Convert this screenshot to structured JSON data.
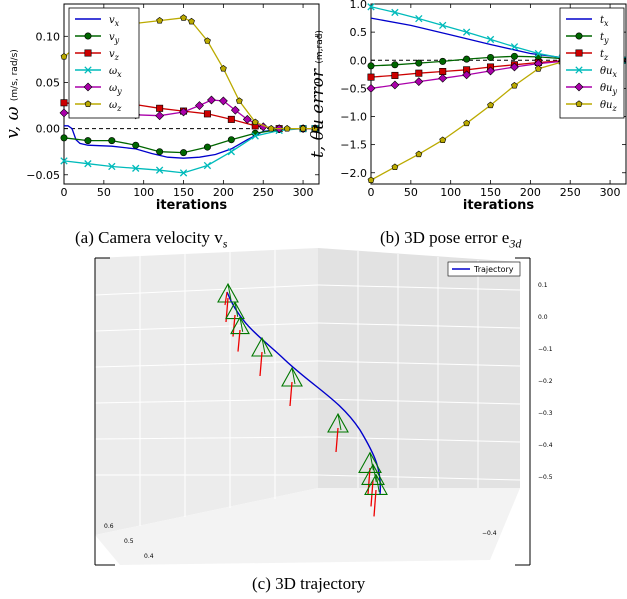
{
  "captions": {
    "a": "(a) Camera velocity v",
    "a_sub": "s",
    "b": "(b) 3D pose error e",
    "b_sub": "3d",
    "c": "(c) 3D trajectory"
  },
  "chart_data": [
    {
      "type": "line",
      "id": "velocity",
      "xlabel": "iterations",
      "ylabel": "v, ω",
      "ylabel_units": "(m/s, rad/s)",
      "xlim": [
        0,
        320
      ],
      "ylim": [
        -0.06,
        0.135
      ],
      "xticks": [
        0,
        50,
        100,
        150,
        200,
        250,
        300
      ],
      "yticks": [
        -0.05,
        0.0,
        0.05,
        0.1
      ],
      "ytick_labels": [
        "−0.05",
        "0.00",
        "0.05",
        "0.10"
      ],
      "legend_position": "top-left",
      "series": [
        {
          "name": "v_x",
          "color": "#0000cc",
          "marker": "none",
          "x": [
            0,
            5,
            10,
            15,
            20,
            30,
            60,
            90,
            110,
            130,
            150,
            170,
            190,
            210,
            230,
            250,
            270,
            290,
            310
          ],
          "y": [
            0.003,
            0.003,
            0.0,
            -0.012,
            -0.016,
            -0.018,
            -0.019,
            -0.022,
            -0.027,
            -0.031,
            -0.032,
            -0.031,
            -0.028,
            -0.022,
            -0.012,
            -0.003,
            -0.001,
            0.0,
            0.0
          ]
        },
        {
          "name": "v_y",
          "color": "#006600",
          "marker": "circle",
          "x": [
            0,
            30,
            60,
            90,
            120,
            150,
            180,
            210,
            240,
            270,
            300,
            315
          ],
          "y": [
            -0.01,
            -0.013,
            -0.013,
            -0.018,
            -0.025,
            -0.026,
            -0.02,
            -0.012,
            -0.005,
            -0.001,
            0.0,
            0.0
          ]
        },
        {
          "name": "v_z",
          "color": "#cc0000",
          "marker": "square",
          "x": [
            0,
            30,
            60,
            90,
            120,
            150,
            180,
            210,
            240,
            270,
            300,
            315
          ],
          "y": [
            0.028,
            0.026,
            0.028,
            0.026,
            0.022,
            0.019,
            0.016,
            0.01,
            0.003,
            0.0,
            0.0,
            0.0
          ]
        },
        {
          "name": "ω_x",
          "color": "#00bbbb",
          "marker": "x",
          "x": [
            0,
            30,
            60,
            90,
            120,
            150,
            180,
            210,
            240,
            270,
            300,
            315
          ],
          "y": [
            -0.035,
            -0.038,
            -0.041,
            -0.043,
            -0.045,
            -0.048,
            -0.04,
            -0.025,
            -0.008,
            -0.002,
            0.0,
            0.0
          ]
        },
        {
          "name": "ω_y",
          "color": "#aa00aa",
          "marker": "diamond",
          "x": [
            0,
            30,
            60,
            90,
            120,
            150,
            170,
            185,
            200,
            215,
            230,
            250,
            270,
            300,
            315
          ],
          "y": [
            0.017,
            0.016,
            0.016,
            0.015,
            0.014,
            0.018,
            0.025,
            0.031,
            0.03,
            0.02,
            0.01,
            0.002,
            0.0,
            0.0,
            0.0
          ]
        },
        {
          "name": "ω_z",
          "color": "#bbaa00",
          "marker": "pentagon",
          "x": [
            0,
            30,
            60,
            90,
            120,
            150,
            160,
            180,
            200,
            220,
            240,
            260,
            280,
            300,
            315
          ],
          "y": [
            0.078,
            0.098,
            0.11,
            0.114,
            0.117,
            0.12,
            0.116,
            0.095,
            0.065,
            0.03,
            0.007,
            0.0,
            0.0,
            0.0,
            0.0
          ]
        }
      ]
    },
    {
      "type": "line",
      "id": "pose_error",
      "xlabel": "iterations",
      "ylabel": "t, θu error",
      "ylabel_units": "(m,rad)",
      "xlim": [
        0,
        320
      ],
      "ylim": [
        -2.2,
        1.0
      ],
      "xticks": [
        0,
        50,
        100,
        150,
        200,
        250,
        300
      ],
      "yticks": [
        -2.0,
        -1.5,
        -1.0,
        -0.5,
        0.0,
        0.5,
        1.0
      ],
      "ytick_labels": [
        "−2.0",
        "−1.5",
        "−1.0",
        "−0.5",
        "0.0",
        "0.5",
        "1.0"
      ],
      "legend_position": "top-right",
      "series": [
        {
          "name": "t_x",
          "color": "#0000cc",
          "marker": "none",
          "x": [
            0,
            50,
            100,
            150,
            200,
            250,
            300,
            315
          ],
          "y": [
            0.75,
            0.62,
            0.45,
            0.28,
            0.12,
            0.03,
            0.0,
            0.0
          ]
        },
        {
          "name": "t_y",
          "color": "#006600",
          "marker": "circle",
          "x": [
            0,
            30,
            60,
            90,
            120,
            150,
            180,
            210,
            240,
            270,
            300,
            315
          ],
          "y": [
            -0.1,
            -0.08,
            -0.05,
            -0.02,
            0.02,
            0.05,
            0.07,
            0.06,
            0.03,
            0.01,
            0.0,
            0.0
          ]
        },
        {
          "name": "t_z",
          "color": "#cc0000",
          "marker": "square",
          "x": [
            0,
            30,
            60,
            90,
            120,
            150,
            180,
            210,
            240,
            270,
            300,
            315
          ],
          "y": [
            -0.3,
            -0.27,
            -0.23,
            -0.2,
            -0.17,
            -0.12,
            -0.08,
            -0.04,
            -0.01,
            0.0,
            0.0,
            0.0
          ]
        },
        {
          "name": "θu_x",
          "color": "#00bbbb",
          "marker": "x",
          "x": [
            0,
            30,
            60,
            90,
            120,
            150,
            180,
            210,
            240,
            270,
            300,
            315
          ],
          "y": [
            0.95,
            0.85,
            0.74,
            0.62,
            0.5,
            0.37,
            0.24,
            0.12,
            0.04,
            0.01,
            0.0,
            0.0
          ]
        },
        {
          "name": "θu_y",
          "color": "#aa00aa",
          "marker": "diamond",
          "x": [
            0,
            30,
            60,
            90,
            120,
            150,
            180,
            210,
            240,
            270,
            300,
            315
          ],
          "y": [
            -0.5,
            -0.44,
            -0.38,
            -0.32,
            -0.26,
            -0.19,
            -0.12,
            -0.06,
            -0.02,
            0.0,
            0.0,
            0.0
          ]
        },
        {
          "name": "θu_z",
          "color": "#bbaa00",
          "marker": "pentagon",
          "x": [
            0,
            30,
            60,
            90,
            120,
            150,
            180,
            210,
            240,
            270,
            300,
            315
          ],
          "y": [
            -2.13,
            -1.9,
            -1.67,
            -1.42,
            -1.12,
            -0.8,
            -0.45,
            -0.15,
            -0.03,
            0.0,
            0.0,
            0.0
          ]
        }
      ]
    },
    {
      "type": "line",
      "id": "trajectory_3d",
      "legend": "Trajectory",
      "legend_position": "top-right",
      "right_ticks": [
        "0.1",
        "0.0",
        "−0.1",
        "−0.2",
        "−0.3",
        "−0.4",
        "−0.5"
      ],
      "bottom_left_ticks": [
        "0.6",
        "0.5",
        "0.4"
      ],
      "bottom_right_ticks": [
        "−0.4"
      ],
      "color": "#0000cc"
    }
  ]
}
